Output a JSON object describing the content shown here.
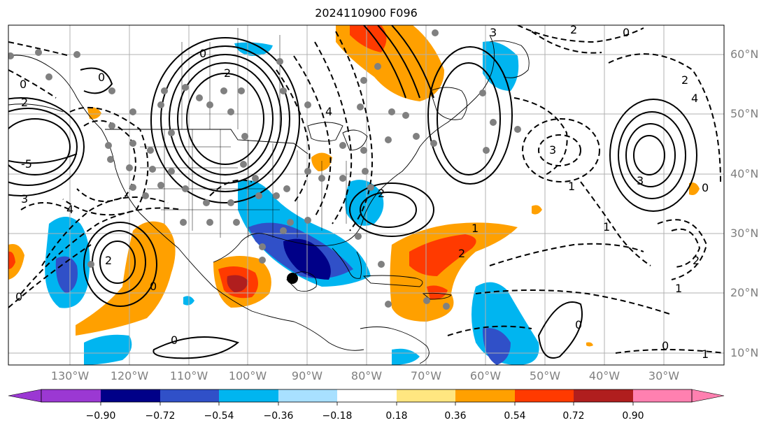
{
  "title": "2024110900 F096",
  "map": {
    "lon_labels": [
      "130°W",
      "120°W",
      "110°W",
      "100°W",
      "90°W",
      "80°W",
      "70°W",
      "60°W",
      "50°W",
      "40°W",
      "30°W"
    ],
    "lat_labels": [
      "60°N",
      "50°N",
      "40°N",
      "30°N",
      "20°N",
      "10°N"
    ],
    "contour_labels": [
      "0",
      "2",
      "3",
      "4",
      "1",
      "-1",
      "-2",
      "-3",
      "-4",
      "-5",
      "5"
    ]
  },
  "colorbar": {
    "ticks": [
      "−0.90",
      "−0.72",
      "−0.54",
      "−0.36",
      "−0.18",
      "0.18",
      "0.36",
      "0.54",
      "0.72",
      "0.90"
    ],
    "colors": [
      "#9b38d3",
      "#000088",
      "#3050c8",
      "#00b5f0",
      "#a8e0ff",
      "#ffffff",
      "#ffe680",
      "#ffa000",
      "#ff3a00",
      "#b01e1e",
      "#ff80b0"
    ]
  }
}
